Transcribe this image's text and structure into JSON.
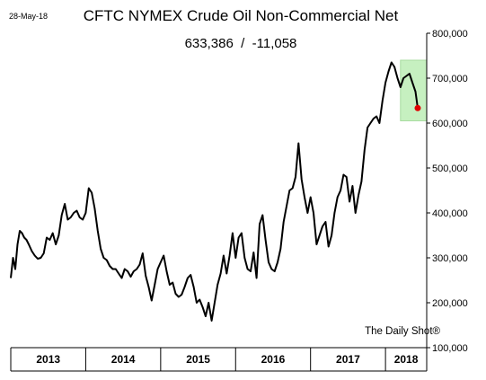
{
  "chart_data": {
    "type": "line",
    "title": "CFTC NYMEX Crude Oil Non-Commercial Net",
    "subtitle": "633,386  /  -11,058",
    "date_label": "28-May-18",
    "source": "The Daily Shot®",
    "y_axis_side": "right",
    "ylim": [
      100000,
      800000
    ],
    "y_ticks": [
      "100,000",
      "200,000",
      "300,000",
      "400,000",
      "500,000",
      "600,000",
      "700,000",
      "800,000"
    ],
    "y_tick_values": [
      100000,
      200000,
      300000,
      400000,
      500000,
      600000,
      700000,
      800000
    ],
    "x_categories": [
      "2013",
      "2014",
      "2015",
      "2016",
      "2017",
      "2018"
    ],
    "xlim": [
      2013.0,
      2018.55
    ],
    "grid": false,
    "line_color": "#000000",
    "highlight": {
      "x_range": [
        2018.2,
        2018.55
      ],
      "y_range": [
        605000,
        740000
      ],
      "color": "#c6f0c0"
    },
    "last_point": {
      "x": 2018.43,
      "y": 633386,
      "color": "#e00000"
    },
    "series": [
      {
        "x": [
          2013.0,
          2013.03,
          2013.06,
          2013.09,
          2013.12,
          2013.15,
          2013.18,
          2013.21,
          2013.24,
          2013.28,
          2013.32,
          2013.36,
          2013.4,
          2013.44,
          2013.48,
          2013.52,
          2013.56,
          2013.6,
          2013.64,
          2013.68,
          2013.72,
          2013.76,
          2013.8,
          2013.84,
          2013.88,
          2013.92,
          2013.96,
          2014.0,
          2014.04,
          2014.08,
          2014.12,
          2014.16,
          2014.2,
          2014.24,
          2014.28,
          2014.32,
          2014.36,
          2014.4,
          2014.44,
          2014.48,
          2014.52,
          2014.56,
          2014.6,
          2014.64,
          2014.68,
          2014.72,
          2014.76,
          2014.8,
          2014.84,
          2014.88,
          2014.92,
          2014.96,
          2015.0,
          2015.04,
          2015.08,
          2015.12,
          2015.16,
          2015.2,
          2015.24,
          2015.28,
          2015.32,
          2015.36,
          2015.4,
          2015.44,
          2015.48,
          2015.52,
          2015.56,
          2015.6,
          2015.64,
          2015.68,
          2015.72,
          2015.76,
          2015.8,
          2015.84,
          2015.88,
          2015.92,
          2015.96,
          2016.0,
          2016.04,
          2016.08,
          2016.12,
          2016.16,
          2016.2,
          2016.24,
          2016.28,
          2016.32,
          2016.36,
          2016.4,
          2016.44,
          2016.48,
          2016.52,
          2016.56,
          2016.6,
          2016.64,
          2016.68,
          2016.72,
          2016.76,
          2016.8,
          2016.84,
          2016.88,
          2016.92,
          2016.96,
          2017.0,
          2017.04,
          2017.08,
          2017.12,
          2017.16,
          2017.2,
          2017.24,
          2017.28,
          2017.32,
          2017.36,
          2017.4,
          2017.44,
          2017.48,
          2017.52,
          2017.56,
          2017.6,
          2017.64,
          2017.68,
          2017.72,
          2017.76,
          2017.8,
          2017.84,
          2017.88,
          2017.92,
          2017.96,
          2018.0,
          2018.04,
          2018.08,
          2018.12,
          2018.16,
          2018.2,
          2018.24,
          2018.28,
          2018.32,
          2018.36,
          2018.4,
          2018.43
        ],
        "values": [
          255000,
          300000,
          275000,
          330000,
          360000,
          355000,
          345000,
          340000,
          330000,
          315000,
          305000,
          298000,
          300000,
          310000,
          345000,
          340000,
          355000,
          330000,
          350000,
          395000,
          420000,
          385000,
          390000,
          400000,
          405000,
          390000,
          385000,
          400000,
          455000,
          445000,
          410000,
          360000,
          320000,
          300000,
          295000,
          282000,
          275000,
          275000,
          265000,
          255000,
          275000,
          270000,
          258000,
          270000,
          275000,
          285000,
          310000,
          260000,
          235000,
          205000,
          240000,
          275000,
          290000,
          305000,
          270000,
          240000,
          245000,
          220000,
          213000,
          218000,
          235000,
          255000,
          262000,
          235000,
          200000,
          207000,
          190000,
          170000,
          200000,
          160000,
          200000,
          240000,
          265000,
          305000,
          265000,
          305000,
          355000,
          300000,
          345000,
          355000,
          300000,
          275000,
          270000,
          312000,
          255000,
          375000,
          395000,
          340000,
          290000,
          275000,
          270000,
          290000,
          320000,
          380000,
          415000,
          450000,
          455000,
          480000,
          555000,
          475000,
          435000,
          400000,
          435000,
          400000,
          330000,
          350000,
          370000,
          380000,
          325000,
          350000,
          400000,
          435000,
          450000,
          485000,
          480000,
          425000,
          460000,
          400000,
          440000,
          470000,
          540000,
          590000,
          600000,
          610000,
          615000,
          600000,
          650000,
          690000,
          715000,
          735000,
          725000,
          700000,
          680000,
          700000,
          705000,
          710000,
          690000,
          670000,
          633386
        ]
      }
    ]
  }
}
